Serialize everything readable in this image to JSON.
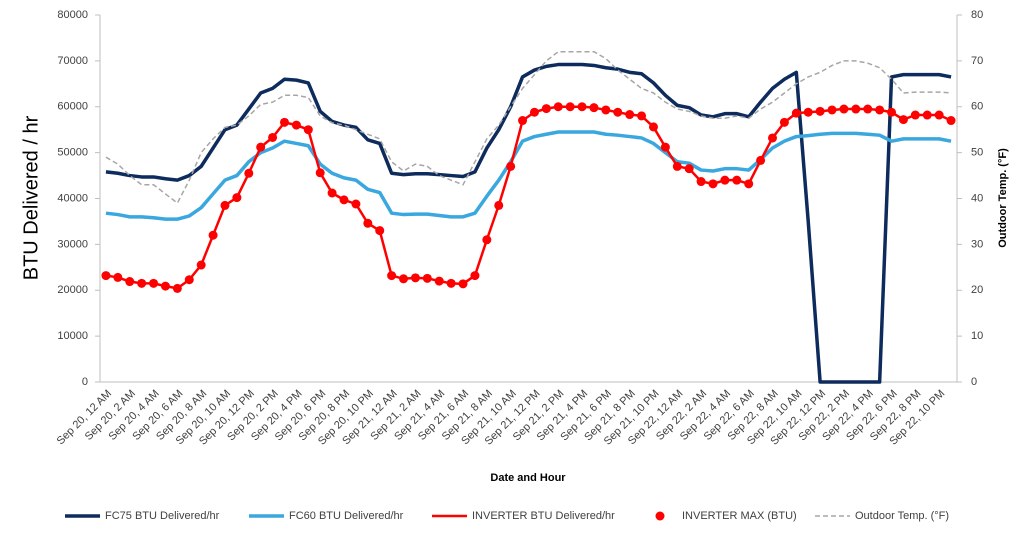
{
  "chart_data": {
    "type": "line",
    "y_label": "BTU Delivered / hr",
    "y2_label": "Outdoor Temp. (°F)",
    "x_label": "Date and Hour",
    "ylim": [
      0,
      80000
    ],
    "yticks": [
      0,
      10000,
      20000,
      30000,
      40000,
      50000,
      60000,
      70000,
      80000
    ],
    "y2lim": [
      0,
      80
    ],
    "y2ticks": [
      0,
      10,
      20,
      30,
      40,
      50,
      60,
      70,
      80
    ],
    "grid": false,
    "legend": "bottom",
    "categories": [
      "Sep 20, 12 AM",
      null,
      "Sep 20, 2 AM",
      null,
      "Sep 20, 4 AM",
      null,
      "Sep 20, 6 AM",
      null,
      "Sep 20, 8 AM",
      null,
      "Sep 20, 10 AM",
      null,
      "Sep 20, 12 PM",
      null,
      "Sep 20, 2 PM",
      null,
      "Sep 20, 4 PM",
      null,
      "Sep 20, 6 PM",
      null,
      "Sep 20, 8 PM",
      null,
      "Sep 20, 10 PM",
      null,
      "Sep 21, 12 AM",
      null,
      "Sep 21, 2 AM",
      null,
      "Sep 21, 4 AM",
      null,
      "Sep 21, 6 AM",
      null,
      "Sep 21, 8 AM",
      null,
      "Sep 21, 10 AM",
      null,
      "Sep 21, 12 PM",
      null,
      "Sep 21, 2 PM",
      null,
      "Sep 21, 4 PM",
      null,
      "Sep 21, 6 PM",
      null,
      "Sep 21, 8 PM",
      null,
      "Sep 21, 10 PM",
      null,
      "Sep 22, 12 AM",
      null,
      "Sep 22, 2 AM",
      null,
      "Sep 22, 4 AM",
      null,
      "Sep 22, 6 AM",
      null,
      "Sep 22, 8 AM",
      null,
      "Sep 22, 10 AM",
      null,
      "Sep 22, 12 PM",
      null,
      "Sep 22, 2 PM",
      null,
      "Sep 22, 4 PM",
      null,
      "Sep 22, 6 PM",
      null,
      "Sep 22, 8 PM",
      null,
      "Sep 22, 10 PM",
      null
    ],
    "series": [
      {
        "name": "FC75 BTU Delivered/hr",
        "color": "#0d2b5c",
        "width": 3.5,
        "values": [
          45800,
          45500,
          45000,
          44700,
          44700,
          44300,
          44000,
          45000,
          47000,
          51000,
          55000,
          56000,
          59500,
          63000,
          64000,
          66000,
          65800,
          65200,
          59000,
          56800,
          56000,
          55500,
          52800,
          52000,
          45500,
          45200,
          45400,
          45400,
          45200,
          45000,
          44800,
          45800,
          51000,
          55000,
          60000,
          66500,
          68000,
          68800,
          69200,
          69200,
          69200,
          69000,
          68500,
          68200,
          67500,
          67200,
          65200,
          62500,
          60300,
          59800,
          58200,
          57800,
          58500,
          58500,
          57800,
          61000,
          64000,
          66000,
          67500,
          35000,
          0,
          0,
          0,
          0,
          0,
          0,
          66500,
          67000,
          67000,
          67000,
          67000,
          66500
        ]
      },
      {
        "name": "FC60 BTU Delivered/hr",
        "color": "#3aa7df",
        "width": 3.5,
        "values": [
          36800,
          36500,
          36000,
          36000,
          35800,
          35500,
          35500,
          36200,
          38000,
          41000,
          44000,
          45000,
          48000,
          50000,
          51000,
          52500,
          52000,
          51500,
          47500,
          45500,
          44500,
          44000,
          42000,
          41300,
          36800,
          36500,
          36600,
          36600,
          36300,
          36000,
          36000,
          36800,
          40500,
          44000,
          48000,
          52500,
          53500,
          54000,
          54500,
          54500,
          54500,
          54500,
          54000,
          53800,
          53500,
          53200,
          52000,
          50000,
          48000,
          47700,
          46200,
          46000,
          46500,
          46500,
          46200,
          48500,
          51000,
          52500,
          53500,
          53700,
          54000,
          54200,
          54200,
          54200,
          54000,
          53800,
          52500,
          53000,
          53000,
          53000,
          53000,
          52500
        ]
      },
      {
        "name": "INVERTER BTU Delivered/hr",
        "color": "#ff0000",
        "width": 2.5,
        "values": [
          23200,
          22800,
          21900,
          21500,
          21500,
          20900,
          20400,
          22300,
          25500,
          32000,
          38500,
          40200,
          45500,
          51200,
          53300,
          56600,
          56000,
          55000,
          45600,
          41200,
          39700,
          38800,
          34600,
          33000,
          23200,
          22500,
          22700,
          22600,
          22000,
          21500,
          21400,
          23200,
          31000,
          38500,
          47000,
          57000,
          58800,
          59600,
          60000,
          60000,
          60000,
          59800,
          59300,
          58800,
          58300,
          58000,
          55600,
          51200,
          47000,
          46500,
          43700,
          43200,
          44000,
          44000,
          43200,
          48300,
          53200,
          56600,
          58600,
          58800,
          59000,
          59300,
          59500,
          59500,
          59500,
          59300,
          58800,
          57200,
          58200,
          58200,
          58200,
          57000
        ]
      },
      {
        "name": "INVERTER MAX (BTU)",
        "color": "#ff0000",
        "marker": "circle",
        "values": [
          23200,
          22800,
          21900,
          21500,
          21500,
          20900,
          20400,
          22300,
          25500,
          32000,
          38500,
          40200,
          45500,
          51200,
          53300,
          56600,
          56000,
          55000,
          45600,
          41200,
          39700,
          38800,
          34600,
          33000,
          23200,
          22500,
          22700,
          22600,
          22000,
          21500,
          21400,
          23200,
          31000,
          38500,
          47000,
          57000,
          58800,
          59600,
          60000,
          60000,
          60000,
          59800,
          59300,
          58800,
          58300,
          58000,
          55600,
          51200,
          47000,
          46500,
          43700,
          43200,
          44000,
          44000,
          43200,
          48300,
          53200,
          56600,
          58600,
          58800,
          59000,
          59300,
          59500,
          59500,
          59500,
          59300,
          58800,
          57200,
          58200,
          58200,
          58200,
          57000
        ]
      },
      {
        "name": "Outdoor Temp. (°F)",
        "color": "#a6a6a6",
        "width": 1.5,
        "line_style": "dashed",
        "axis": "y2",
        "values": [
          49,
          47.5,
          45,
          43,
          43,
          41,
          39,
          44,
          50,
          53,
          55.5,
          56,
          58,
          60.5,
          61,
          62.5,
          62.5,
          62,
          58,
          56.5,
          56,
          55,
          54,
          53,
          48,
          46,
          47.5,
          47,
          45,
          44,
          43,
          48,
          53,
          56,
          60,
          64,
          67,
          70,
          72,
          72,
          72,
          72,
          70.5,
          68,
          66,
          64,
          63,
          61,
          59.5,
          59,
          58,
          57.5,
          57.5,
          58,
          57.5,
          59.5,
          61,
          63,
          65,
          66.5,
          67.5,
          69,
          70,
          70,
          69.5,
          68.5,
          66,
          63,
          63.2,
          63.2,
          63.2,
          63
        ]
      }
    ]
  }
}
